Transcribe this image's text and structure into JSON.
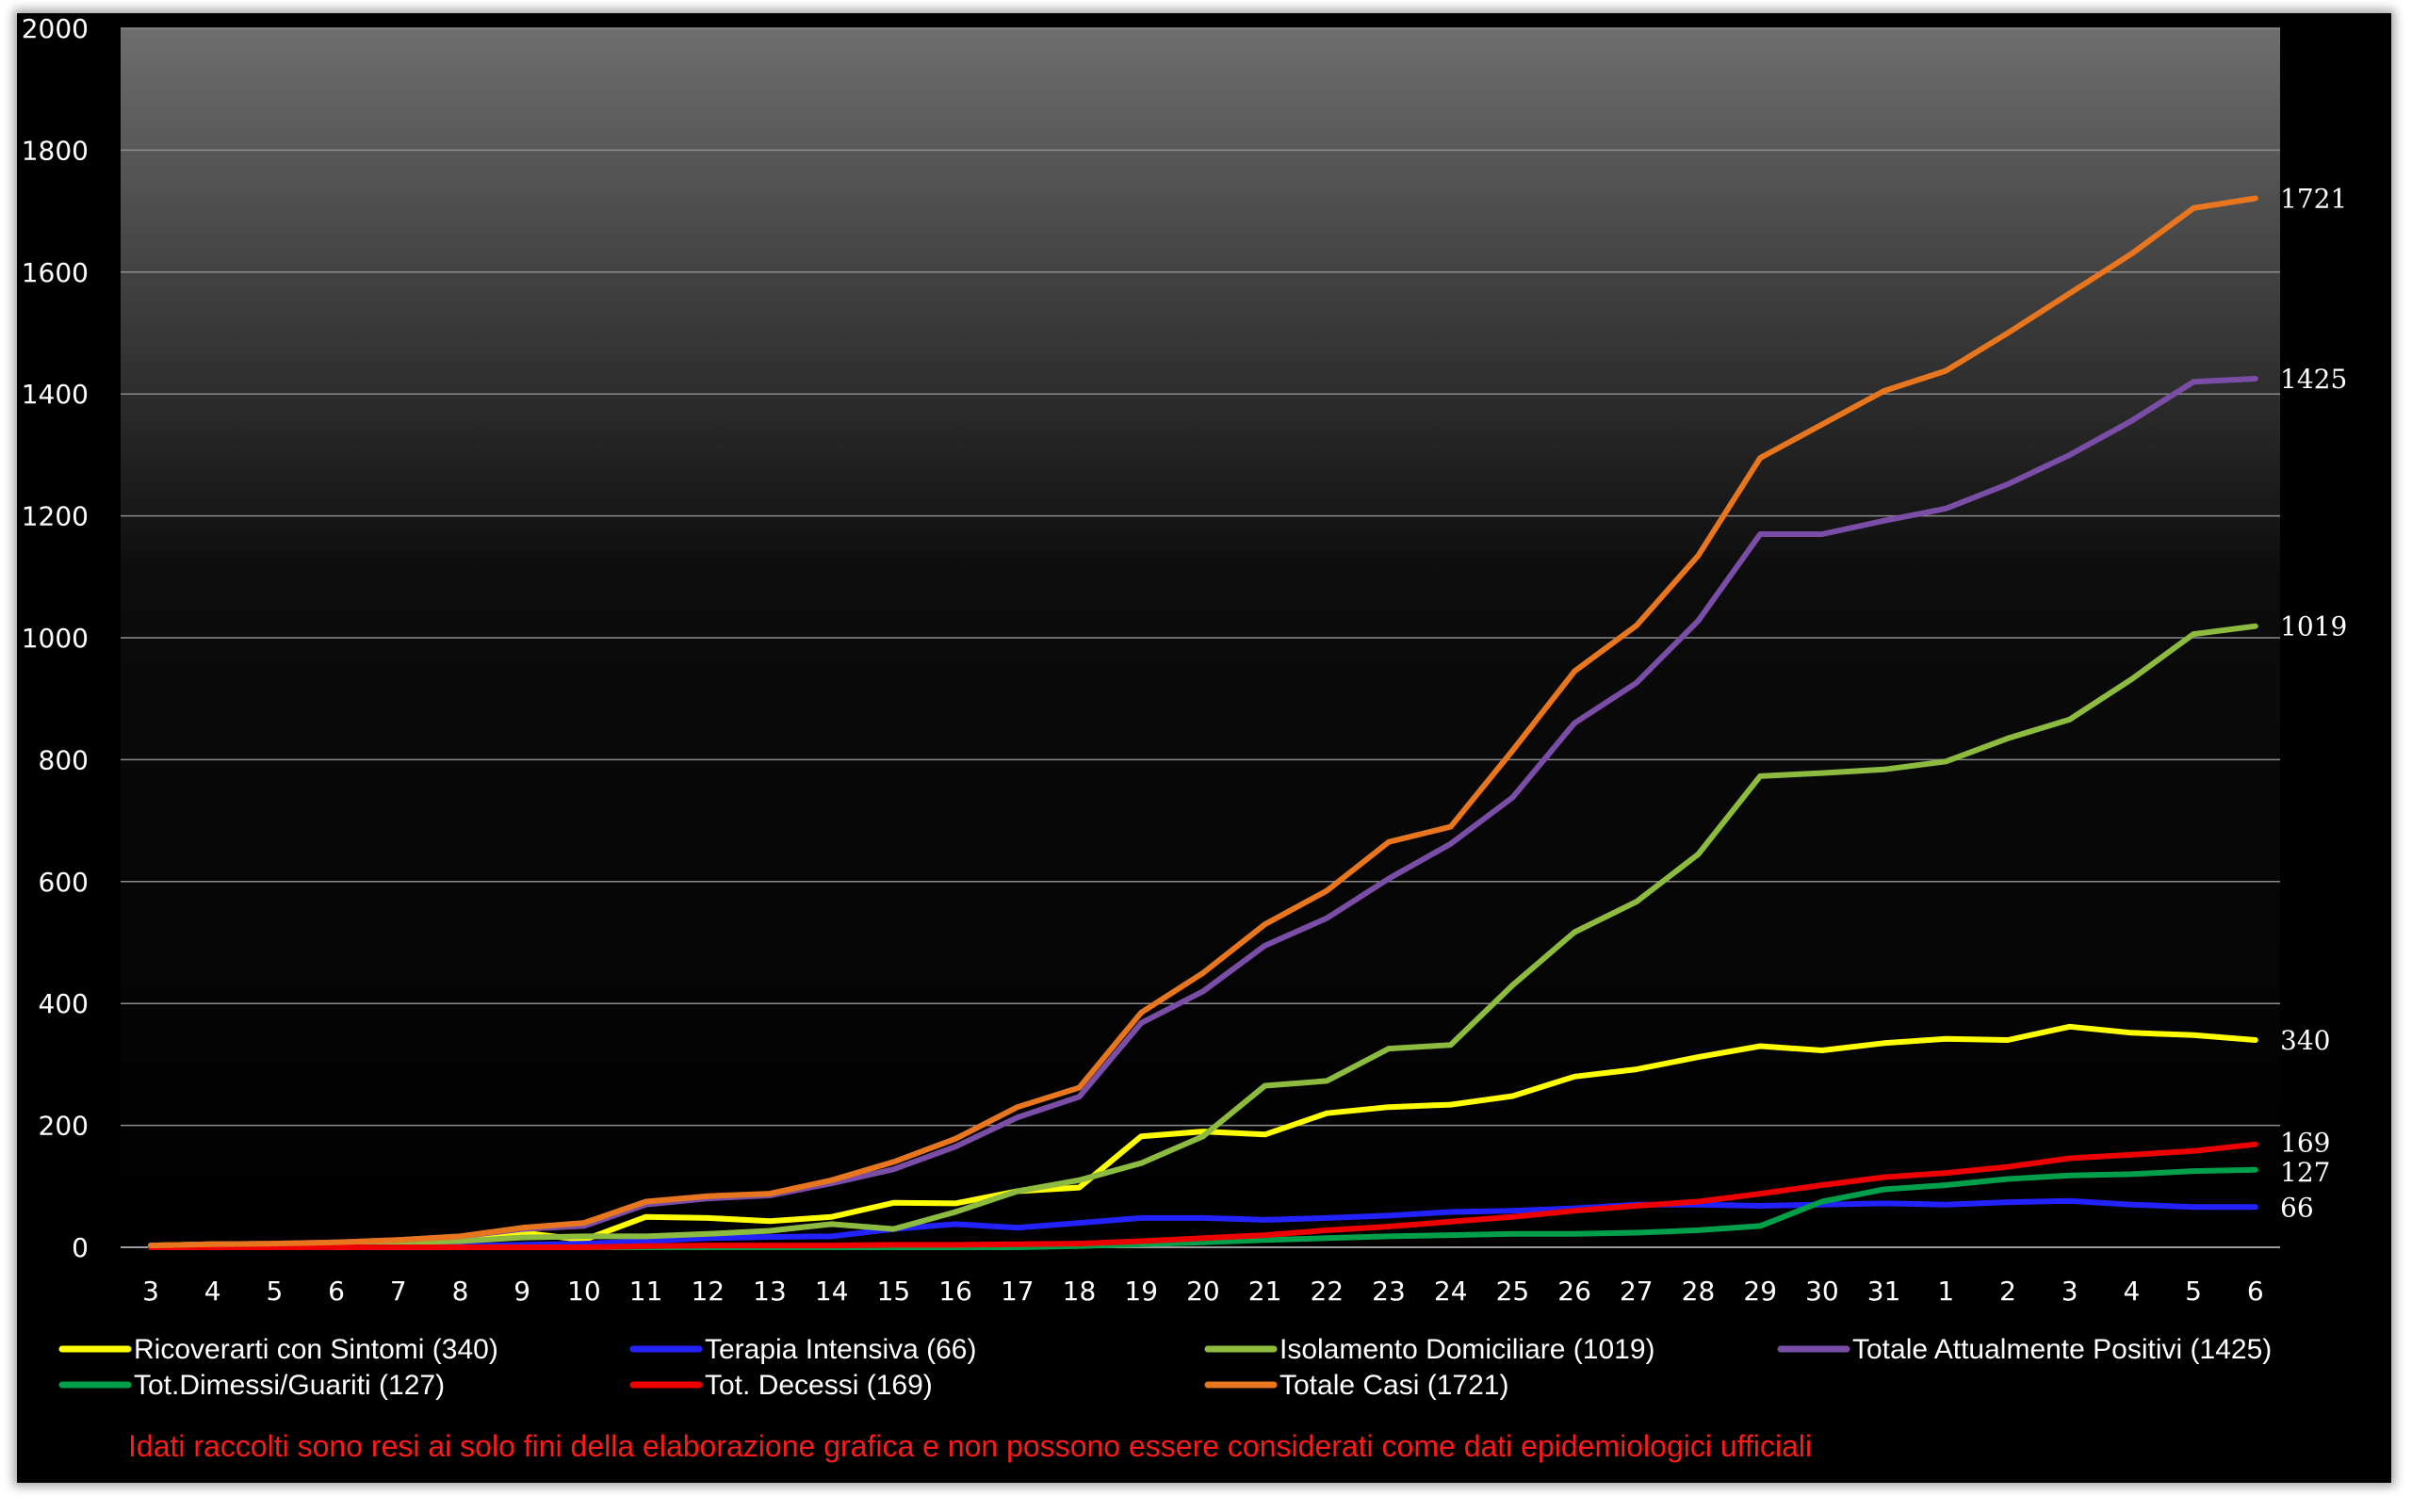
{
  "chart_data": {
    "type": "line",
    "title": "",
    "xlabel": "",
    "ylabel": "",
    "ylim": [
      0,
      2000
    ],
    "yticks": [
      0,
      200,
      400,
      600,
      800,
      1000,
      1200,
      1400,
      1600,
      1800,
      2000
    ],
    "grid": true,
    "legend_placement": "bottom",
    "categories": [
      "3",
      "4",
      "5",
      "6",
      "7",
      "8",
      "9",
      "10",
      "11",
      "12",
      "13",
      "14",
      "15",
      "16",
      "17",
      "18",
      "19",
      "20",
      "21",
      "22",
      "23",
      "24",
      "25",
      "26",
      "27",
      "28",
      "29",
      "30",
      "31",
      "1",
      "2",
      "3",
      "4",
      "5",
      "6"
    ],
    "series": [
      {
        "name": "Ricoverarti con Sintomi (340)",
        "color": "#ffff00",
        "end_label": "340",
        "values": [
          3,
          5,
          5,
          6,
          8,
          10,
          24,
          12,
          50,
          48,
          43,
          50,
          73,
          72,
          92,
          98,
          182,
          190,
          185,
          220,
          230,
          234,
          248,
          280,
          292,
          312,
          330,
          323,
          335,
          342,
          340,
          362,
          352,
          348,
          340
        ]
      },
      {
        "name": "Terapia Intensiva (66)",
        "color": "#2222ff",
        "end_label": "66",
        "values": [
          0,
          0,
          0,
          0,
          1,
          2,
          4,
          6,
          10,
          15,
          17,
          18,
          30,
          38,
          32,
          40,
          48,
          48,
          45,
          48,
          52,
          58,
          60,
          64,
          70,
          70,
          68,
          70,
          72,
          70,
          74,
          76,
          70,
          66,
          66
        ]
      },
      {
        "name": "Isolamento Domiciliare (1019)",
        "color": "#8dbb3f",
        "end_label": "1019",
        "values": [
          2,
          3,
          5,
          6,
          8,
          10,
          16,
          18,
          18,
          22,
          27,
          38,
          30,
          58,
          92,
          110,
          138,
          182,
          265,
          273,
          326,
          332,
          430,
          517,
          567,
          645,
          773,
          778,
          784,
          797,
          835,
          866,
          932,
          1006,
          1019
        ]
      },
      {
        "name": "Totale Attualmente Positivi (1425)",
        "color": "#7a4ea6",
        "end_label": "1425",
        "values": [
          3,
          5,
          6,
          8,
          12,
          18,
          30,
          35,
          70,
          80,
          85,
          105,
          128,
          165,
          213,
          247,
          368,
          420,
          495,
          540,
          605,
          662,
          738,
          860,
          926,
          1028,
          1170,
          1170,
          1192,
          1212,
          1252,
          1300,
          1356,
          1420,
          1425
        ]
      },
      {
        "name": "Tot.Dimessi/Guariti (127)",
        "color": "#00a04a",
        "end_label": "127",
        "values": [
          0,
          0,
          0,
          0,
          0,
          0,
          0,
          0,
          0,
          0,
          0,
          0,
          0,
          0,
          0,
          2,
          5,
          8,
          12,
          15,
          18,
          20,
          22,
          22,
          24,
          28,
          35,
          75,
          95,
          102,
          112,
          118,
          120,
          125,
          127
        ]
      },
      {
        "name": "Tot. Decessi (169)",
        "color": "#ee0000",
        "end_label": "169",
        "values": [
          0,
          0,
          0,
          0,
          0,
          0,
          0,
          0,
          2,
          3,
          3,
          3,
          4,
          4,
          5,
          6,
          10,
          15,
          20,
          28,
          34,
          42,
          50,
          60,
          68,
          75,
          88,
          102,
          115,
          122,
          132,
          146,
          152,
          158,
          169
        ]
      },
      {
        "name": "Totale Casi (1721)",
        "color": "#e8761f",
        "end_label": "1721",
        "values": [
          3,
          5,
          6,
          8,
          12,
          18,
          32,
          40,
          75,
          84,
          88,
          110,
          140,
          178,
          230,
          262,
          385,
          450,
          530,
          585,
          665,
          690,
          815,
          945,
          1020,
          1135,
          1295,
          1350,
          1405,
          1438,
          1500,
          1565,
          1630,
          1705,
          1721
        ]
      }
    ],
    "disclaimer": "Idati raccolti  sono resi ai solo fini della  elaborazione  grafica  e non possono essere considerati come dati epidemiologici  ufficiali"
  }
}
